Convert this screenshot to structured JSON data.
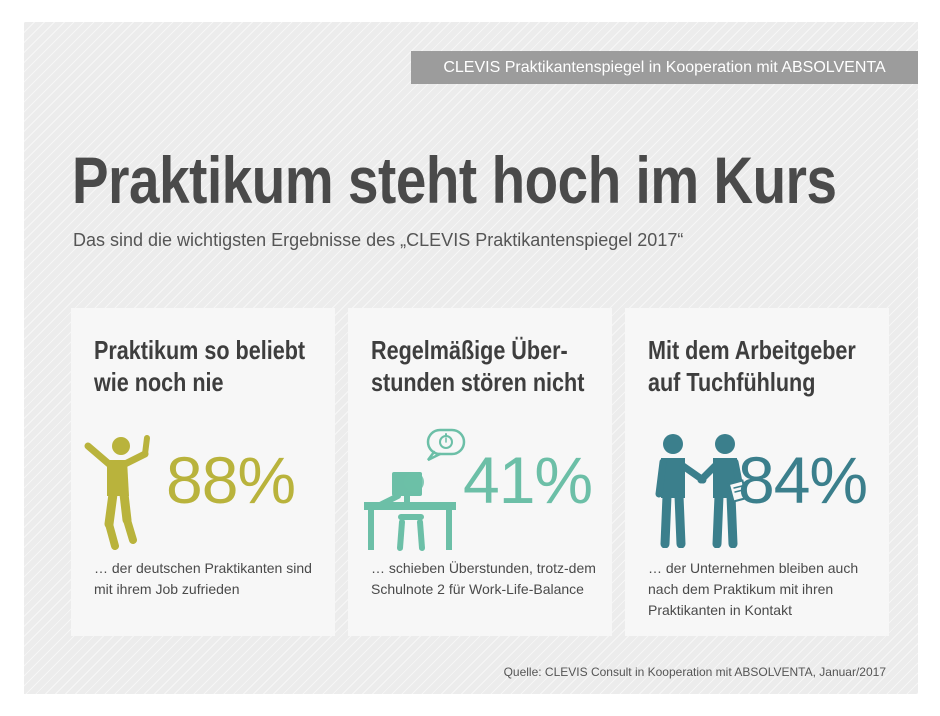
{
  "banner": {
    "text": "CLEVIS Praktikantenspiegel in Kooperation mit ABSOLVENTA"
  },
  "title": "Praktikum steht hoch im Kurs",
  "subtitle": "Das sind die wichtigsten Ergebnisse des „CLEVIS Praktikantenspiegel 2017“",
  "colors": {
    "olive": "#b9b33c",
    "teal": "#6cbfa7",
    "petrol": "#3b7f8c"
  },
  "cards": [
    {
      "title": "Praktikum so beliebt wie noch nie",
      "value": "88%",
      "icon": "cheering-person-icon",
      "description": "… der deutschen Praktikanten sind mit ihrem Job zufrieden"
    },
    {
      "title": "Regelmäßige Über-stunden stören nicht",
      "value": "41%",
      "icon": "person-at-desk-icon",
      "description": "… schieben Überstunden, trotz-dem Schulnote 2 für Work-Life-Balance"
    },
    {
      "title": "Mit dem Arbeitgeber auf Tuchfühlung",
      "value": "84%",
      "icon": "handshake-icon",
      "description": "… der Unternehmen bleiben auch nach dem Praktikum mit ihren Praktikanten in Kontakt"
    }
  ],
  "source": "Quelle: CLEVIS Consult in Kooperation mit ABSOLVENTA, Januar/2017",
  "chart_data": {
    "type": "table",
    "categories": [
      "Praktikum so beliebt wie noch nie",
      "Regelmäßige Über-stunden stören nicht",
      "Mit dem Arbeitgeber auf Tuchfühlung"
    ],
    "values": [
      88,
      41,
      84
    ]
  }
}
